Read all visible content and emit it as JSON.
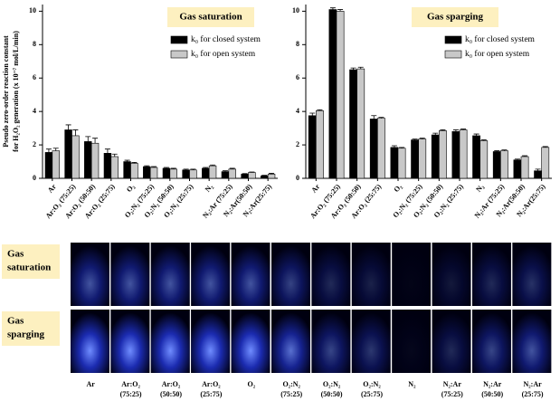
{
  "chart_data": [
    {
      "type": "bar",
      "title": "Gas saturation",
      "y_label": [
        "Pseudo zero-order reaction constant",
        "for H₂O₂ generation (x 10⁻⁷ mol/L/min)"
      ],
      "categories": [
        "Ar",
        "Ar:O₂ (75:25)",
        "Ar:O₂ (50:50)",
        "Ar:O₂ (25:75)",
        "O₂",
        "O₂:N₂ (75:25)",
        "O₂:N₂ (50:50)",
        "O₂:N₂ (25:75)",
        "N₂",
        "N₂:Ar (75:25)",
        "N₂:Ar(50:50)",
        "N₂:Ar(25:75)"
      ],
      "series": [
        {
          "name": "k₀ for closed system",
          "color": "#000000",
          "values": [
            1.55,
            2.9,
            2.2,
            1.5,
            1.0,
            0.7,
            0.6,
            0.5,
            0.6,
            0.4,
            0.25,
            0.15
          ],
          "errors": [
            0.2,
            0.3,
            0.3,
            0.25,
            0.08,
            0.05,
            0.05,
            0.05,
            0.05,
            0.05,
            0.03,
            0.03
          ]
        },
        {
          "name": "k₀ for open system",
          "color": "#c8c8c8",
          "values": [
            1.65,
            2.55,
            2.1,
            1.3,
            0.9,
            0.65,
            0.55,
            0.5,
            0.75,
            0.55,
            0.35,
            0.25
          ],
          "errors": [
            0.15,
            0.35,
            0.3,
            0.15,
            0.05,
            0.05,
            0.05,
            0.05,
            0.05,
            0.05,
            0.03,
            0.05
          ]
        }
      ],
      "ylim": [
        0,
        10.4
      ],
      "yticks": [
        0,
        2,
        4,
        6,
        8,
        10
      ],
      "legend": "upper right"
    },
    {
      "type": "bar",
      "title": "Gas sparging",
      "categories": [
        "Ar",
        "Ar:O₂ (75:25)",
        "Ar:O₂ (50:50)",
        "Ar:O₂ (25:75)",
        "O₂",
        "O₂:N₂ (75:25)",
        "O₂:N₂ (50:50)",
        "O₂:N₂ (25:75)",
        "N₂",
        "N₂:Ar (75:25)",
        "N₂:Ar(50:50)",
        "N₂:Ar(25:75)"
      ],
      "series": [
        {
          "name": "k₀ for closed system",
          "color": "#000000",
          "values": [
            3.75,
            10.1,
            6.5,
            3.55,
            1.85,
            2.3,
            2.6,
            2.8,
            2.55,
            1.6,
            1.1,
            0.45
          ],
          "errors": [
            0.15,
            0.1,
            0.1,
            0.2,
            0.1,
            0.05,
            0.1,
            0.1,
            0.1,
            0.05,
            0.05,
            0.1
          ]
        },
        {
          "name": "k₀ for open system",
          "color": "#c8c8c8",
          "values": [
            4.05,
            10.0,
            6.55,
            3.6,
            1.8,
            2.35,
            2.85,
            2.9,
            2.25,
            1.65,
            1.3,
            1.85
          ],
          "errors": [
            0.05,
            0.1,
            0.1,
            0.05,
            0.05,
            0.05,
            0.05,
            0.05,
            0.05,
            0.05,
            0.05,
            0.05
          ]
        }
      ],
      "ylim": [
        0,
        10.4
      ],
      "yticks": [
        0,
        2,
        4,
        6,
        8,
        10
      ],
      "legend": "upper right"
    }
  ],
  "image_grid": {
    "rows": [
      [
        "Gas",
        "saturation"
      ],
      [
        "Gas",
        "sparging"
      ]
    ],
    "columns": [
      [
        "Ar"
      ],
      [
        "Ar:O₂",
        "(75:25)"
      ],
      [
        "Ar:O₂",
        "(50:50)"
      ],
      [
        "Ar:O₂",
        "(25:75)"
      ],
      [
        "O₂"
      ],
      [
        "O₂:N₂",
        "(75:25)"
      ],
      [
        "O₂:N₂",
        "(50:50)"
      ],
      [
        "O₂:N₂",
        "(25:75)"
      ],
      [
        "N₂"
      ],
      [
        "N₂:Ar",
        "(75:25)"
      ],
      [
        "N₂:Ar",
        "(50:50)"
      ],
      [
        "N₂:Ar",
        "(25:75)"
      ]
    ]
  }
}
